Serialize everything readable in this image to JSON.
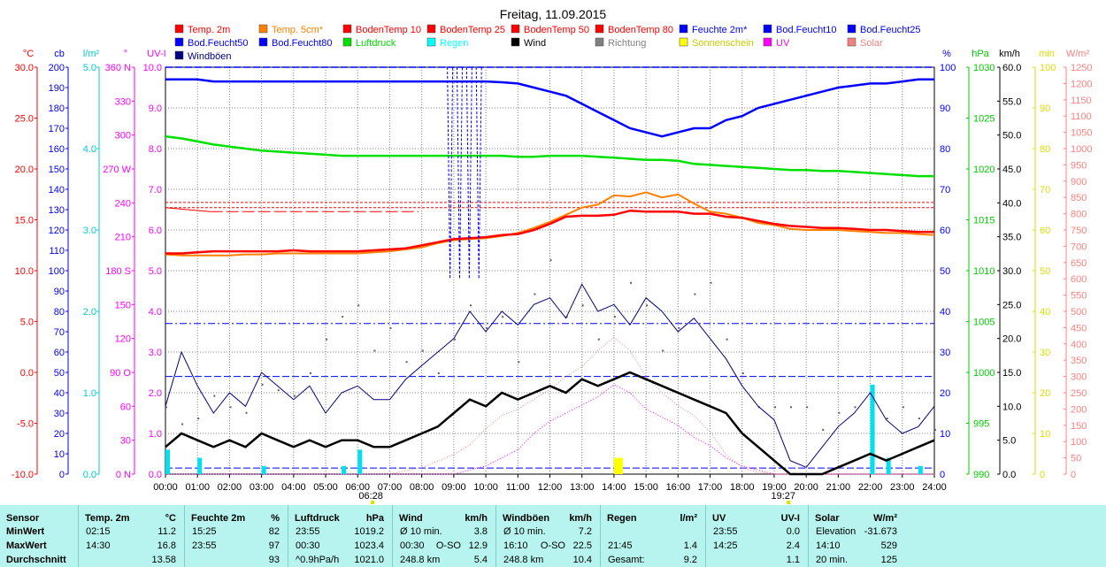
{
  "chart_data": {
    "type": "line",
    "title": "Freitag, 11.09.2015",
    "legend": [
      {
        "name": "Temp. 2m",
        "color": "#ff0000"
      },
      {
        "name": "Temp. 5cm*",
        "color": "#ff8000"
      },
      {
        "name": "BodenTemp 10",
        "color": "#ff0000"
      },
      {
        "name": "BodenTemp 25",
        "color": "#ff0000"
      },
      {
        "name": "BodenTemp 50",
        "color": "#ff0000"
      },
      {
        "name": "BodenTemp 80",
        "color": "#ff0000"
      },
      {
        "name": "Feuchte 2m*",
        "color": "#0000ff"
      },
      {
        "name": "Bod.Feucht10",
        "color": "#0000ff"
      },
      {
        "name": "Bod.Feucht25",
        "color": "#0000ff"
      },
      {
        "name": "Bod.Feucht50",
        "color": "#0000ff"
      },
      {
        "name": "Bod.Feucht80",
        "color": "#0000ff"
      },
      {
        "name": "Luftdruck",
        "color": "#00dd00"
      },
      {
        "name": "Regen",
        "color": "#00ffff"
      },
      {
        "name": "Wind",
        "color": "#000000"
      },
      {
        "name": "Richtung",
        "color": "#808080"
      },
      {
        "name": "Sonnenschein",
        "color": "#ffff00"
      },
      {
        "name": "UV",
        "color": "#ff00ff"
      },
      {
        "name": "Solar",
        "color": "#f08080"
      },
      {
        "name": "Windböen",
        "color": "#000080"
      }
    ],
    "x_ticks": [
      "00:00",
      "01:00",
      "02:00",
      "03:00",
      "04:00",
      "05:00",
      "06:00",
      "07:00",
      "08:00",
      "09:00",
      "10:00",
      "11:00",
      "12:00",
      "13:00",
      "14:00",
      "15:00",
      "16:00",
      "17:00",
      "18:00",
      "19:00",
      "20:00",
      "21:00",
      "22:00",
      "23:00",
      "24:00"
    ],
    "sunrise": "06:28",
    "sunset": "19:27",
    "axes": [
      {
        "unit": "°C",
        "color": "#ff0000",
        "ticks": [
          "30.0",
          "25.0",
          "20.0",
          "15.0",
          "10.0",
          "5.0",
          "0.0",
          "-5.0",
          "-10.0"
        ]
      },
      {
        "unit": "cb",
        "color": "#0000ff",
        "ticks": [
          "200",
          "190",
          "180",
          "170",
          "160",
          "150",
          "140",
          "130",
          "120",
          "110",
          "100",
          "90",
          "80",
          "70",
          "60",
          "50",
          "40",
          "30",
          "20",
          "10",
          "0"
        ]
      },
      {
        "unit": "l/m²",
        "color": "#00cccc",
        "ticks": [
          "5.0",
          "4.0",
          "3.0",
          "2.0",
          "1.0",
          "0.0"
        ]
      },
      {
        "unit": "°",
        "color": "#ff00ff",
        "ticks": [
          "360 N",
          "330",
          "300",
          "270 W",
          "240",
          "210",
          "180 S",
          "150",
          "120",
          "90 O",
          "60",
          "30",
          "0 N"
        ]
      },
      {
        "unit": "UV-I",
        "color": "#ff00ff",
        "ticks": [
          "10.0",
          "9.0",
          "8.0",
          "7.0",
          "6.0",
          "5.0",
          "4.0",
          "3.0",
          "2.0",
          "1.0",
          "0.0"
        ]
      },
      {
        "unit": "%",
        "color": "#0000ff",
        "ticks": [
          "100",
          "90",
          "80",
          "70",
          "60",
          "50",
          "40",
          "30",
          "20",
          "10",
          "0"
        ]
      },
      {
        "unit": "hPa",
        "color": "#00cc00",
        "ticks": [
          "1030",
          "1025",
          "1020",
          "1015",
          "1010",
          "1005",
          "1000",
          "995",
          "990"
        ]
      },
      {
        "unit": "km/h",
        "color": "#000000",
        "ticks": [
          "60.0",
          "55.0",
          "50.0",
          "45.0",
          "40.0",
          "35.0",
          "30.0",
          "25.0",
          "20.0",
          "15.0",
          "10.0",
          "5.0",
          "0.0"
        ]
      },
      {
        "unit": "min",
        "color": "#dddd00",
        "ticks": [
          "100",
          "90",
          "80",
          "70",
          "60",
          "50",
          "40",
          "30",
          "20",
          "10",
          "0"
        ]
      },
      {
        "unit": "W/m²",
        "color": "#ff8080",
        "ticks": [
          "1250",
          "1200",
          "1150",
          "1100",
          "1050",
          "1000",
          "950",
          "900",
          "850",
          "800",
          "750",
          "700",
          "650",
          "600",
          "550",
          "500",
          "450",
          "400",
          "350",
          "300",
          "250",
          "200",
          "150",
          "100",
          "50",
          "0"
        ]
      }
    ],
    "ylim_uv": [
      0,
      10
    ],
    "hours": [
      0,
      0.5,
      1,
      1.5,
      2,
      2.5,
      3,
      3.5,
      4,
      4.5,
      5,
      5.5,
      6,
      6.5,
      7,
      7.5,
      8,
      8.5,
      9,
      9.5,
      10,
      10.5,
      11,
      11.5,
      12,
      12.5,
      13,
      13.5,
      14,
      14.5,
      15,
      15.5,
      16,
      16.5,
      17,
      17.5,
      18,
      18.5,
      19,
      19.5,
      20,
      20.5,
      21,
      21.5,
      22,
      22.5,
      23,
      23.5,
      24
    ],
    "series": [
      {
        "name": "Temp. 2m",
        "unit": "°C",
        "values": [
          11.7,
          11.7,
          11.8,
          11.9,
          11.9,
          11.9,
          11.9,
          11.9,
          12.0,
          11.9,
          11.9,
          11.9,
          11.9,
          12.0,
          12.1,
          12.2,
          12.5,
          12.8,
          13.1,
          13.2,
          13.3,
          13.5,
          13.6,
          14.0,
          14.6,
          15.3,
          15.4,
          15.4,
          15.5,
          15.9,
          15.8,
          15.8,
          15.8,
          15.6,
          15.6,
          15.3,
          15.2,
          14.9,
          14.6,
          14.4,
          14.3,
          14.2,
          14.2,
          14.1,
          14.0,
          14.0,
          13.9,
          13.8,
          13.8
        ]
      },
      {
        "name": "Temp. 5cm*",
        "unit": "°C",
        "values": [
          11.6,
          11.5,
          11.5,
          11.5,
          11.5,
          11.6,
          11.6,
          11.7,
          11.7,
          11.7,
          11.7,
          11.7,
          11.7,
          11.8,
          11.9,
          12.1,
          12.3,
          12.7,
          13.0,
          13.1,
          13.2,
          13.4,
          13.7,
          14.2,
          14.8,
          15.5,
          16.2,
          16.5,
          17.4,
          17.3,
          17.7,
          17.2,
          17.5,
          16.6,
          15.8,
          15.6,
          15.2,
          14.7,
          14.5,
          14.1,
          14.0,
          14.0,
          14.0,
          13.9,
          13.8,
          13.7,
          13.7,
          13.6,
          13.5
        ]
      },
      {
        "name": "BodenTemp 50",
        "unit": "°C",
        "values": [
          16.2,
          16.2,
          16.2,
          16.2,
          16.2,
          16.2,
          16.2,
          16.2,
          16.2,
          16.2,
          16.2,
          16.2,
          16.2,
          16.2,
          16.2,
          16.2,
          16.2,
          16.2,
          16.2,
          16.2,
          16.2,
          16.2,
          16.2,
          16.2,
          16.2,
          16.2,
          16.2,
          16.2,
          16.2,
          16.2,
          16.2,
          16.2,
          16.2,
          16.2,
          16.2,
          16.2,
          16.2,
          16.2,
          16.2,
          16.2,
          16.2,
          16.2,
          16.2,
          16.2,
          16.2,
          16.2,
          16.2,
          16.2,
          16.2
        ]
      },
      {
        "name": "BodenTemp 80",
        "unit": "°C",
        "values": [
          16.7,
          16.7,
          16.7,
          16.7,
          16.7,
          16.7,
          16.7,
          16.7,
          16.7,
          16.7,
          16.7,
          16.7,
          16.7,
          16.7,
          16.7,
          16.7,
          16.7,
          16.7,
          16.7,
          16.7,
          16.7,
          16.7,
          16.7,
          16.7,
          16.7,
          16.7,
          16.7,
          16.7,
          16.7,
          16.7,
          16.7,
          16.7,
          16.7,
          16.7,
          16.7,
          16.7,
          16.7,
          16.7,
          16.7,
          16.7,
          16.7,
          16.7,
          16.7,
          16.7,
          16.7,
          16.7,
          16.7,
          16.7,
          16.7
        ]
      },
      {
        "name": "Feuchte 2m*",
        "unit": "%",
        "values": [
          97,
          97,
          97,
          96.5,
          96.5,
          96.5,
          96.5,
          96.5,
          96.5,
          96.5,
          96.5,
          96.5,
          96.5,
          96.5,
          96.5,
          96.5,
          96.5,
          96.5,
          96.5,
          96.5,
          96.5,
          96.3,
          96,
          95,
          94,
          93,
          91,
          89,
          87,
          85,
          84,
          83,
          84,
          85,
          85,
          87,
          88,
          90,
          91,
          92,
          93,
          94,
          95,
          95.5,
          96,
          96,
          96.5,
          97,
          97
        ]
      },
      {
        "name": "Luftdruck",
        "unit": "hPa",
        "values": [
          1023.2,
          1023.0,
          1022.7,
          1022.4,
          1022.2,
          1022.0,
          1021.8,
          1021.7,
          1021.6,
          1021.5,
          1021.4,
          1021.3,
          1021.3,
          1021.3,
          1021.3,
          1021.3,
          1021.3,
          1021.3,
          1021.3,
          1021.3,
          1021.3,
          1021.3,
          1021.2,
          1021.2,
          1021.3,
          1021.3,
          1021.3,
          1021.2,
          1021.1,
          1021.0,
          1020.9,
          1020.9,
          1020.8,
          1020.5,
          1020.4,
          1020.3,
          1020.2,
          1020.1,
          1020.0,
          1019.9,
          1019.9,
          1019.8,
          1019.8,
          1019.7,
          1019.6,
          1019.5,
          1019.4,
          1019.3,
          1019.3
        ]
      },
      {
        "name": "Wind",
        "unit": "km/h",
        "values": [
          4,
          6,
          5,
          4,
          5,
          4,
          6,
          5,
          4,
          5,
          4,
          5,
          5,
          4,
          4,
          5,
          6,
          7,
          9,
          11,
          10,
          12,
          11,
          12,
          13,
          12,
          14,
          13,
          14,
          15,
          14,
          13,
          12,
          11,
          10,
          9,
          6,
          4,
          2,
          0,
          0,
          0,
          1,
          2,
          3,
          2,
          3,
          4,
          5
        ]
      },
      {
        "name": "Windböen",
        "unit": "km/h",
        "values": [
          10,
          18,
          13,
          9,
          12,
          10,
          15,
          13,
          11,
          13,
          9,
          12,
          13,
          11,
          11,
          14,
          16,
          18,
          20,
          24,
          21,
          24,
          22,
          25,
          26,
          23,
          28,
          24,
          25,
          22,
          26,
          24,
          21,
          23,
          20,
          17,
          13,
          10,
          8,
          2,
          1,
          4,
          7,
          9,
          12,
          8,
          6,
          7,
          10
        ]
      },
      {
        "name": "Regen",
        "unit": "l/m²",
        "values": [
          0.3,
          0,
          0.2,
          0,
          0,
          0,
          0.1,
          0,
          0,
          0,
          0,
          0.1,
          0.3,
          0,
          0,
          0,
          0,
          0,
          0,
          0,
          0,
          0,
          0,
          0,
          0,
          0,
          0,
          0,
          0,
          0,
          0,
          0,
          0,
          0,
          0,
          0,
          0,
          0,
          0,
          0,
          0,
          0,
          0,
          0,
          1.1,
          0.2,
          0,
          0.1,
          0
        ]
      },
      {
        "name": "UV",
        "unit": "UV-I",
        "values": [
          0,
          0,
          0,
          0,
          0,
          0,
          0,
          0,
          0,
          0,
          0,
          0,
          0,
          0,
          0,
          0,
          0,
          0,
          0,
          0.1,
          0.2,
          0.4,
          0.6,
          1.0,
          1.3,
          1.5,
          1.7,
          1.9,
          2.2,
          2.0,
          1.6,
          1.4,
          1.2,
          0.9,
          0.7,
          0.4,
          0.2,
          0.1,
          0,
          0,
          0,
          0,
          0,
          0,
          0,
          0,
          0,
          0,
          0
        ]
      },
      {
        "name": "Solar",
        "unit": "W/m²",
        "values": [
          0,
          0,
          0,
          0,
          0,
          0,
          0,
          0,
          0,
          0,
          0,
          0,
          0,
          0,
          0,
          10,
          20,
          40,
          60,
          90,
          140,
          180,
          200,
          230,
          260,
          300,
          330,
          380,
          420,
          380,
          300,
          250,
          210,
          180,
          130,
          60,
          20,
          5,
          0,
          0,
          0,
          0,
          0,
          0,
          0,
          0,
          0,
          0,
          0
        ]
      },
      {
        "name": "Richtung",
        "unit": "°",
        "values": [
          60,
          45,
          50,
          70,
          60,
          55,
          80,
          75,
          70,
          90,
          120,
          140,
          150,
          110,
          130,
          100,
          110,
          90,
          120,
          150,
          130,
          140,
          100,
          160,
          190,
          140,
          150,
          120,
          140,
          170,
          150,
          110,
          130,
          160,
          170,
          120,
          90,
          60,
          60,
          60,
          60,
          40,
          55,
          60,
          70,
          50,
          60,
          50,
          40
        ]
      },
      {
        "name": "Sonnenschein",
        "unit": "min",
        "values": [
          0,
          0,
          0,
          0,
          0,
          0,
          0,
          0,
          0,
          0,
          0,
          0,
          0,
          0,
          0,
          0,
          0,
          0,
          0,
          0,
          0,
          0,
          0,
          0,
          0,
          0,
          0,
          0,
          4,
          0,
          0,
          0,
          0,
          0,
          0,
          0,
          0,
          0,
          0,
          0,
          0,
          0,
          0,
          0,
          0,
          0,
          0,
          0,
          0
        ]
      },
      {
        "name": "Bod.Feucht50",
        "unit": "cb",
        "values": [
          0,
          0,
          0,
          0,
          0,
          0,
          0,
          0,
          0,
          0,
          0,
          0,
          0,
          0,
          0,
          0,
          0,
          0,
          0,
          0,
          0,
          0,
          0,
          0,
          0,
          0,
          0,
          0,
          0,
          0,
          0,
          0,
          0,
          0,
          0,
          0,
          0,
          0,
          0,
          0,
          0,
          0,
          0,
          0,
          0,
          0,
          0,
          0,
          0
        ]
      }
    ],
    "extra_refs": {
      "Feuchte_dashed_a": 37,
      "Feuchte_dashed_b": 24,
      "Bod_Feucht10_dashed": 54
    }
  },
  "stats": {
    "cols": [
      {
        "title": "Sensor",
        "rows": [
          "MinWert",
          "MaxWert",
          "Durchschnitt"
        ]
      },
      {
        "title": "Temp. 2m",
        "unit": "°C",
        "rows": [
          [
            "02:15",
            "11.2"
          ],
          [
            "14:30",
            "16.8"
          ],
          [
            "",
            "13.58"
          ]
        ]
      },
      {
        "title": "Feuchte 2m",
        "unit": "%",
        "rows": [
          [
            "15:25",
            "82"
          ],
          [
            "23:55",
            "97"
          ],
          [
            "",
            "93"
          ]
        ]
      },
      {
        "title": "Luftdruck",
        "unit": "hPa",
        "rows": [
          [
            "23:55",
            "1019.2"
          ],
          [
            "00:30",
            "1023.4"
          ],
          [
            "^0.9hPa/h",
            "1021.0"
          ]
        ]
      },
      {
        "title": "Wind",
        "unit": "km/h",
        "rows": [
          [
            "Ø 10 min.",
            "",
            "3.8"
          ],
          [
            "00:30",
            "O-SO",
            "12.9"
          ],
          [
            "248.8 km",
            "",
            "5.4"
          ]
        ]
      },
      {
        "title": "Windböen",
        "unit": "km/h",
        "rows": [
          [
            "Ø 10 min.",
            "",
            "7.2"
          ],
          [
            "16:10",
            "O-SO",
            "22.5"
          ],
          [
            "248.8 km",
            "",
            "10.4"
          ]
        ]
      },
      {
        "title": "Regen",
        "unit": "l/m²",
        "rows": [
          [
            "",
            ""
          ],
          [
            "21:45",
            "1.4"
          ],
          [
            "Gesamt:",
            "9.2"
          ]
        ]
      },
      {
        "title": "UV",
        "unit": "UV-I",
        "rows": [
          [
            "23:55",
            "0.0"
          ],
          [
            "14:25",
            "2.4"
          ],
          [
            "",
            "1.1"
          ]
        ]
      },
      {
        "title": "Solar",
        "unit": "W/m²",
        "rows": [
          [
            "Elevation",
            "-31.673"
          ],
          [
            "14:10",
            "529"
          ],
          [
            "20 min.",
            "125"
          ]
        ]
      }
    ]
  }
}
